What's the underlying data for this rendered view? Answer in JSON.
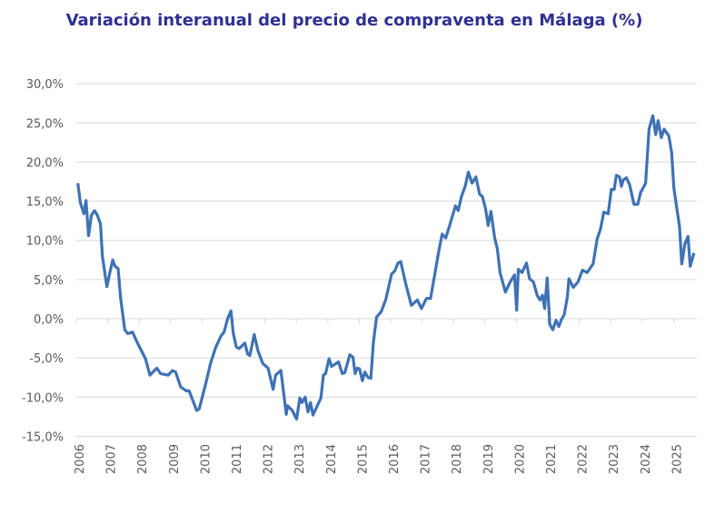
{
  "chart_data": {
    "type": "line",
    "title": "Variación interanual del precio de compraventa en Málaga (%)",
    "xlabel": "",
    "ylabel": "",
    "ylim": [
      -15,
      30
    ],
    "xlim": [
      2006,
      2025.7
    ],
    "grid": true,
    "legend": "none",
    "line_color": "#3F72B4",
    "title_color": "#2E3192",
    "y_ticks": [
      "30,0%",
      "25,0%",
      "20,0%",
      "15,0%",
      "10,0%",
      "5,0%",
      "0,0%",
      "-5,0%",
      "-10,0%",
      "-15,0%"
    ],
    "y_tick_values": [
      30,
      25,
      20,
      15,
      10,
      5,
      0,
      -5,
      -10,
      -15
    ],
    "x_ticks": [
      "2006",
      "2007",
      "2008",
      "2009",
      "2010",
      "2011",
      "2012",
      "2013",
      "2014",
      "2015",
      "2016",
      "2017",
      "2018",
      "2019",
      "2020",
      "2021",
      "2022",
      "2023",
      "2024",
      "2025"
    ],
    "series": [
      {
        "x": [
          2006.05,
          2006.13,
          2006.24,
          2006.31,
          2006.39,
          2006.48,
          2006.58,
          2006.67,
          2006.77,
          2006.83,
          2006.97,
          2007.09,
          2007.16,
          2007.23,
          2007.33,
          2007.41,
          2007.54,
          2007.64,
          2007.79,
          2007.91,
          2008.2,
          2008.34,
          2008.56,
          2008.68,
          2008.92,
          2009.06,
          2009.16,
          2009.32,
          2009.5,
          2009.59,
          2009.83,
          2009.91,
          2010.12,
          2010.27,
          2010.43,
          2010.6,
          2010.7,
          2010.82,
          2010.92,
          2010.99,
          2011.09,
          2011.18,
          2011.36,
          2011.45,
          2011.52,
          2011.66,
          2011.78,
          2011.93,
          2012.1,
          2012.26,
          2012.34,
          2012.51,
          2012.68,
          2012.72,
          2012.87,
          2013.01,
          2013.11,
          2013.18,
          2013.28,
          2013.37,
          2013.45,
          2013.53,
          2013.78,
          2013.86,
          2013.93,
          2014.04,
          2014.12,
          2014.34,
          2014.46,
          2014.54,
          2014.7,
          2014.8,
          2014.87,
          2014.94,
          2015.01,
          2015.1,
          2015.18,
          2015.28,
          2015.37,
          2015.45,
          2015.55,
          2015.7,
          2015.84,
          2016.03,
          2016.13,
          2016.23,
          2016.32,
          2016.47,
          2016.66,
          2016.85,
          2016.98,
          2017.14,
          2017.27,
          2017.38,
          2017.53,
          2017.64,
          2017.75,
          2017.86,
          2018.06,
          2018.15,
          2018.25,
          2018.37,
          2018.47,
          2018.59,
          2018.71,
          2018.83,
          2018.92,
          2019.02,
          2019.1,
          2019.19,
          2019.31,
          2019.39,
          2019.48,
          2019.65,
          2019.79,
          2019.94,
          2020.01,
          2020.06,
          2020.18,
          2020.32,
          2020.42,
          2020.54,
          2020.66,
          2020.75,
          2020.83,
          2020.9,
          2020.98,
          2021.06,
          2021.16,
          2021.26,
          2021.35,
          2021.43,
          2021.52,
          2021.62,
          2021.67,
          2021.81,
          2021.96,
          2022.1,
          2022.25,
          2022.44,
          2022.57,
          2022.68,
          2022.78,
          2022.92,
          2023.02,
          2023.11,
          2023.18,
          2023.28,
          2023.34,
          2023.4,
          2023.5,
          2023.6,
          2023.74,
          2023.86,
          2023.95,
          2024.11,
          2024.22,
          2024.34,
          2024.43,
          2024.51,
          2024.61,
          2024.7,
          2024.85,
          2024.94,
          2025.01,
          2025.19,
          2025.26,
          2025.36,
          2025.46,
          2025.53,
          2025.65
        ],
        "y": [
          17.3,
          14.8,
          13.4,
          15.1,
          10.6,
          13.2,
          13.8,
          13.2,
          12.1,
          8.0,
          4.1,
          6.3,
          7.5,
          6.7,
          6.4,
          2.6,
          -1.4,
          -1.9,
          -1.7,
          -2.8,
          -5.1,
          -7.2,
          -6.3,
          -7.0,
          -7.2,
          -6.6,
          -6.8,
          -8.7,
          -9.2,
          -9.2,
          -11.7,
          -11.5,
          -8.2,
          -5.7,
          -3.7,
          -2.2,
          -1.7,
          0.1,
          1.0,
          -1.8,
          -3.6,
          -3.8,
          -3.1,
          -4.5,
          -4.7,
          -2.0,
          -4.1,
          -5.7,
          -6.3,
          -9.0,
          -7.2,
          -6.6,
          -12.2,
          -11.1,
          -11.7,
          -12.8,
          -10.1,
          -10.7,
          -10.0,
          -11.9,
          -10.7,
          -12.3,
          -10.1,
          -7.2,
          -7.0,
          -5.1,
          -6.1,
          -5.5,
          -7.0,
          -6.9,
          -4.6,
          -4.9,
          -7.0,
          -6.3,
          -6.4,
          -7.9,
          -6.8,
          -7.5,
          -7.6,
          -3.0,
          0.2,
          0.9,
          2.4,
          5.7,
          6.1,
          7.1,
          7.3,
          4.6,
          1.7,
          2.4,
          1.3,
          2.6,
          2.6,
          5.1,
          8.6,
          10.8,
          10.3,
          11.7,
          14.4,
          13.8,
          15.6,
          16.9,
          18.7,
          17.3,
          18.1,
          15.9,
          15.6,
          14.0,
          11.9,
          13.7,
          10.3,
          9.0,
          5.9,
          3.4,
          4.6,
          5.6,
          1.1,
          6.3,
          5.9,
          7.1,
          5.1,
          4.7,
          3.0,
          2.4,
          3.0,
          1.3,
          5.2,
          -0.7,
          -1.4,
          -0.2,
          -1.0,
          -0.1,
          0.5,
          2.8,
          5.1,
          4.0,
          4.7,
          6.2,
          5.9,
          7.0,
          10.2,
          11.5,
          13.6,
          13.4,
          16.5,
          16.5,
          18.3,
          18.1,
          16.9,
          17.7,
          18.0,
          17.1,
          14.6,
          14.6,
          16.1,
          17.3,
          24.2,
          25.9,
          23.5,
          25.3,
          23.1,
          24.2,
          23.3,
          21.2,
          16.7,
          11.7,
          7.0,
          9.6,
          10.5,
          6.7,
          8.4
        ]
      }
    ]
  }
}
